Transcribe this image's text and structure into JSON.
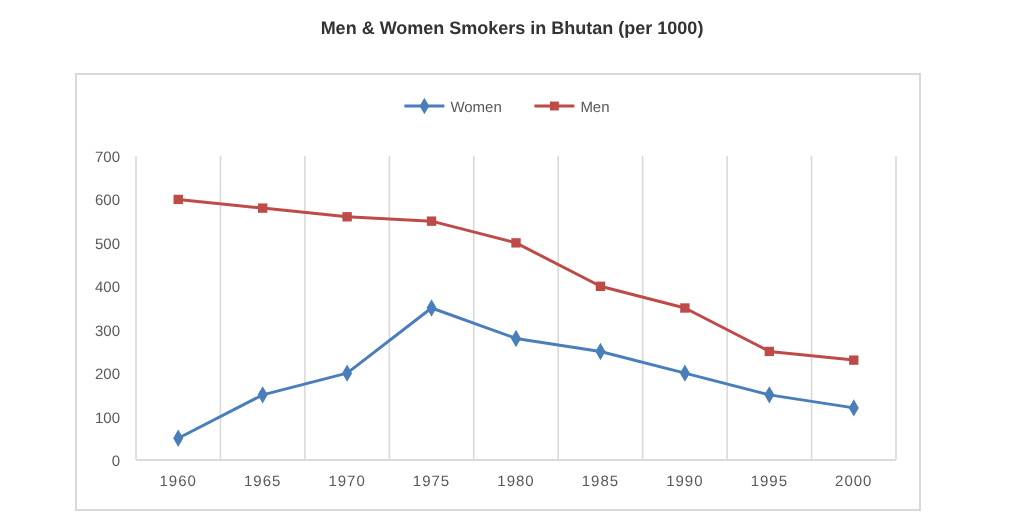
{
  "chart_data": {
    "type": "line",
    "title": "Men & Women Smokers in Bhutan (per 1000)",
    "categories": [
      "1960",
      "1965",
      "1970",
      "1975",
      "1980",
      "1985",
      "1990",
      "1995",
      "2000"
    ],
    "series": [
      {
        "name": "Women",
        "color": "#4a7ebb",
        "marker": "diamond",
        "values": [
          50,
          150,
          200,
          350,
          280,
          250,
          200,
          150,
          120
        ]
      },
      {
        "name": "Men",
        "color": "#be4b48",
        "marker": "square",
        "values": [
          600,
          580,
          560,
          550,
          500,
          400,
          350,
          250,
          230
        ]
      }
    ],
    "ylim": [
      0,
      700
    ],
    "yticks": [
      0,
      100,
      200,
      300,
      400,
      500,
      600,
      700
    ],
    "grid": "x",
    "legend": "top",
    "line_style": "solid"
  }
}
